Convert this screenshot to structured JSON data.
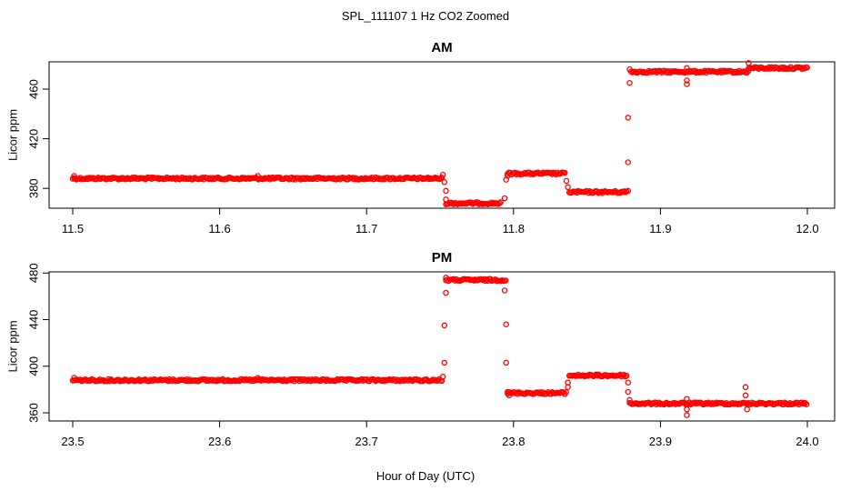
{
  "figure": {
    "title": "SPL_111107  1 Hz CO2 Zoomed",
    "xlabel": "Hour of Day (UTC)"
  },
  "colors": {
    "points": "#ff0000"
  },
  "chart_data": [
    {
      "type": "scatter",
      "title": "AM",
      "ylabel": "Licor ppm",
      "xlim": [
        11.5,
        12.0
      ],
      "ylim": [
        364,
        482
      ],
      "xticks": [
        "11.5",
        "11.6",
        "11.7",
        "11.8",
        "11.9",
        "12.0"
      ],
      "xtick_values": [
        11.5,
        11.6,
        11.7,
        11.8,
        11.9,
        12.0
      ],
      "yticks": [
        "380",
        "420",
        "460"
      ],
      "ytick_values": [
        380,
        420,
        460
      ],
      "marker": "open-circle",
      "segments": [
        {
          "x": [
            11.5,
            11.752
          ],
          "y": 388
        },
        {
          "x": [
            11.754,
            11.792
          ],
          "y": 368
        },
        {
          "x": [
            11.796,
            11.835
          ],
          "y": 392
        },
        {
          "x": [
            11.838,
            11.877
          ],
          "y": 377
        },
        {
          "x": [
            11.88,
            11.96
          ],
          "y": 474
        },
        {
          "x": [
            11.96,
            12.0
          ],
          "y": 477
        }
      ],
      "outliers": [
        {
          "x": 11.501,
          "y": 390
        },
        {
          "x": 11.626,
          "y": 390
        },
        {
          "x": 11.752,
          "y": 391
        },
        {
          "x": 11.753,
          "y": 385
        },
        {
          "x": 11.754,
          "y": 378
        },
        {
          "x": 11.754,
          "y": 371
        },
        {
          "x": 11.794,
          "y": 372
        },
        {
          "x": 11.795,
          "y": 387
        },
        {
          "x": 11.796,
          "y": 390
        },
        {
          "x": 11.836,
          "y": 386
        },
        {
          "x": 11.837,
          "y": 381
        },
        {
          "x": 11.878,
          "y": 378
        },
        {
          "x": 11.878,
          "y": 401
        },
        {
          "x": 11.878,
          "y": 437
        },
        {
          "x": 11.879,
          "y": 465
        },
        {
          "x": 11.879,
          "y": 476
        },
        {
          "x": 11.918,
          "y": 464
        },
        {
          "x": 11.918,
          "y": 467
        },
        {
          "x": 11.918,
          "y": 477
        },
        {
          "x": 11.96,
          "y": 481
        }
      ]
    },
    {
      "type": "scatter",
      "title": "PM",
      "ylabel": "Licor ppm",
      "xlim": [
        23.5,
        24.0
      ],
      "ylim": [
        353,
        481
      ],
      "xticks": [
        "23.5",
        "23.6",
        "23.7",
        "23.8",
        "23.9",
        "24.0"
      ],
      "xtick_values": [
        23.5,
        23.6,
        23.7,
        23.8,
        23.9,
        24.0
      ],
      "yticks": [
        "360",
        "400",
        "440",
        "480"
      ],
      "ytick_values": [
        360,
        400,
        440,
        480
      ],
      "marker": "open-circle",
      "segments": [
        {
          "x": [
            23.5,
            23.752
          ],
          "y": 388
        },
        {
          "x": [
            23.754,
            23.795
          ],
          "y": 474
        },
        {
          "x": [
            23.796,
            23.836
          ],
          "y": 377
        },
        {
          "x": [
            23.838,
            23.877
          ],
          "y": 392
        },
        {
          "x": [
            23.879,
            24.0
          ],
          "y": 368
        }
      ],
      "outliers": [
        {
          "x": 23.501,
          "y": 390
        },
        {
          "x": 23.626,
          "y": 390
        },
        {
          "x": 23.752,
          "y": 391
        },
        {
          "x": 23.753,
          "y": 403
        },
        {
          "x": 23.753,
          "y": 435
        },
        {
          "x": 23.754,
          "y": 463
        },
        {
          "x": 23.754,
          "y": 476
        },
        {
          "x": 23.794,
          "y": 465
        },
        {
          "x": 23.795,
          "y": 436
        },
        {
          "x": 23.795,
          "y": 403
        },
        {
          "x": 23.796,
          "y": 378
        },
        {
          "x": 23.797,
          "y": 375
        },
        {
          "x": 23.837,
          "y": 382
        },
        {
          "x": 23.837,
          "y": 386
        },
        {
          "x": 23.878,
          "y": 386
        },
        {
          "x": 23.878,
          "y": 378
        },
        {
          "x": 23.879,
          "y": 371
        },
        {
          "x": 23.918,
          "y": 372
        },
        {
          "x": 23.918,
          "y": 363
        },
        {
          "x": 23.918,
          "y": 358
        },
        {
          "x": 23.958,
          "y": 382
        },
        {
          "x": 23.958,
          "y": 375
        },
        {
          "x": 23.959,
          "y": 363
        }
      ]
    }
  ]
}
